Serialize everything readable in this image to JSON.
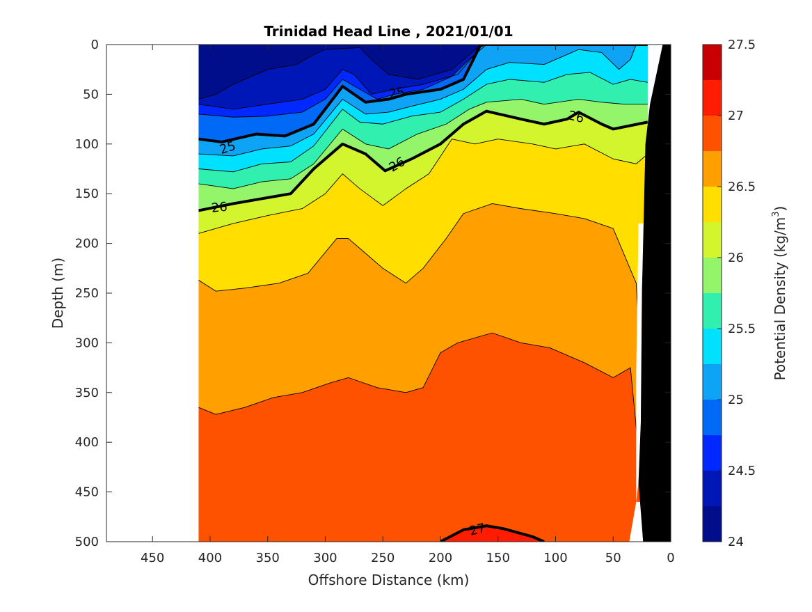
{
  "chart_data": {
    "type": "heatmap",
    "subtype": "filled-contour-section",
    "title": "Trinidad Head Line , 2021/01/01",
    "xlabel": "Offshore Distance (km)",
    "ylabel": "Depth (m)",
    "xlim": [
      490,
      0
    ],
    "ylim": [
      500,
      0
    ],
    "x_direction": "reversed",
    "y_direction": "depth-down",
    "x_ticks": [
      450,
      400,
      350,
      300,
      250,
      200,
      150,
      100,
      50,
      0
    ],
    "y_ticks": [
      0,
      50,
      100,
      150,
      200,
      250,
      300,
      350,
      400,
      450,
      500
    ],
    "colorbar": {
      "label": "Potential Density (kg/m",
      "label_superscript": "3",
      "label_suffix": ")",
      "range": [
        24,
        27.5
      ],
      "tick_labels": [
        "24",
        "24.5",
        "25",
        "25.5",
        "26",
        "26.5",
        "27",
        "27.5"
      ],
      "ticks": [
        24,
        24.5,
        25,
        25.5,
        26,
        26.5,
        27,
        27.5
      ],
      "levels": [
        24,
        24.25,
        24.5,
        24.75,
        25,
        25.25,
        25.5,
        25.75,
        26,
        26.25,
        26.5,
        26.75,
        27,
        27.25,
        27.5
      ],
      "colors": [
        "#000e8b",
        "#0017b8",
        "#0028ff",
        "#006af6",
        "#0ea3f4",
        "#00e0ff",
        "#30efaf",
        "#95f56a",
        "#d2f52d",
        "#ffde00",
        "#ff9f00",
        "#ff5200",
        "#ff1c00",
        "#c80000"
      ]
    },
    "data_extent_km": [
      410,
      20
    ],
    "bold_contours": [
      25,
      26,
      27
    ],
    "contour_labels": [
      "25",
      "25",
      "26",
      "26",
      "26",
      "27"
    ],
    "bands": [
      {
        "value": 24.125,
        "depth_top": [
          [
            410,
            0
          ],
          [
            320,
            0
          ],
          [
            290,
            0
          ],
          [
            200,
            0
          ],
          [
            170,
            0
          ],
          [
            20,
            0
          ]
        ]
      },
      {
        "value": 24.375,
        "depth_top": [
          [
            410,
            55
          ],
          [
            395,
            50
          ],
          [
            380,
            40
          ],
          [
            350,
            25
          ],
          [
            325,
            20
          ],
          [
            310,
            10
          ],
          [
            300,
            5
          ],
          [
            270,
            3
          ],
          [
            260,
            15
          ],
          [
            245,
            30
          ],
          [
            220,
            35
          ],
          [
            190,
            25
          ],
          [
            170,
            5
          ],
          [
            160,
            0
          ],
          [
            20,
            0
          ]
        ]
      },
      {
        "value": 24.625,
        "depth_top": [
          [
            410,
            60
          ],
          [
            380,
            65
          ],
          [
            350,
            60
          ],
          [
            320,
            55
          ],
          [
            300,
            45
          ],
          [
            285,
            25
          ],
          [
            275,
            30
          ],
          [
            260,
            50
          ],
          [
            240,
            45
          ],
          [
            215,
            40
          ],
          [
            185,
            30
          ],
          [
            170,
            10
          ],
          [
            165,
            0
          ],
          [
            20,
            0
          ]
        ]
      },
      {
        "value": 24.875,
        "depth_top": [
          [
            410,
            70
          ],
          [
            380,
            73
          ],
          [
            350,
            72
          ],
          [
            320,
            68
          ],
          [
            300,
            55
          ],
          [
            285,
            35
          ],
          [
            270,
            45
          ],
          [
            255,
            55
          ],
          [
            240,
            50
          ],
          [
            215,
            45
          ],
          [
            190,
            32
          ],
          [
            175,
            15
          ],
          [
            160,
            0
          ],
          [
            20,
            0
          ]
        ]
      },
      {
        "value": 25.125,
        "depth_top": [
          [
            410,
            95
          ],
          [
            390,
            98
          ],
          [
            360,
            90
          ],
          [
            335,
            92
          ],
          [
            310,
            80
          ],
          [
            285,
            42
          ],
          [
            265,
            58
          ],
          [
            245,
            55
          ],
          [
            230,
            50
          ],
          [
            200,
            45
          ],
          [
            180,
            35
          ],
          [
            165,
            0
          ],
          [
            20,
            0
          ]
        ]
      },
      {
        "value": 25.375,
        "depth_top": [
          [
            410,
            110
          ],
          [
            380,
            112
          ],
          [
            355,
            105
          ],
          [
            330,
            102
          ],
          [
            310,
            90
          ],
          [
            285,
            55
          ],
          [
            265,
            70
          ],
          [
            245,
            68
          ],
          [
            225,
            62
          ],
          [
            200,
            55
          ],
          [
            180,
            45
          ],
          [
            160,
            25
          ],
          [
            140,
            18
          ],
          [
            110,
            20
          ],
          [
            90,
            10
          ],
          [
            80,
            5
          ],
          [
            60,
            8
          ],
          [
            45,
            25
          ],
          [
            35,
            15
          ],
          [
            30,
            0
          ],
          [
            20,
            0
          ]
        ]
      },
      {
        "value": 25.625,
        "depth_top": [
          [
            410,
            125
          ],
          [
            380,
            128
          ],
          [
            355,
            120
          ],
          [
            330,
            118
          ],
          [
            310,
            102
          ],
          [
            285,
            65
          ],
          [
            270,
            78
          ],
          [
            250,
            80
          ],
          [
            225,
            72
          ],
          [
            200,
            68
          ],
          [
            180,
            55
          ],
          [
            160,
            40
          ],
          [
            140,
            35
          ],
          [
            110,
            38
          ],
          [
            90,
            30
          ],
          [
            70,
            28
          ],
          [
            50,
            40
          ],
          [
            35,
            35
          ],
          [
            20,
            38
          ]
        ]
      },
      {
        "value": 25.875,
        "depth_top": [
          [
            410,
            140
          ],
          [
            380,
            145
          ],
          [
            355,
            138
          ],
          [
            330,
            135
          ],
          [
            310,
            120
          ],
          [
            285,
            85
          ],
          [
            265,
            100
          ],
          [
            245,
            105
          ],
          [
            220,
            90
          ],
          [
            195,
            80
          ],
          [
            175,
            65
          ],
          [
            160,
            58
          ],
          [
            130,
            55
          ],
          [
            110,
            60
          ],
          [
            80,
            55
          ],
          [
            60,
            58
          ],
          [
            40,
            60
          ],
          [
            20,
            60
          ]
        ]
      },
      {
        "value": 26.125,
        "depth_top": [
          [
            410,
            167
          ],
          [
            380,
            160
          ],
          [
            355,
            155
          ],
          [
            330,
            150
          ],
          [
            310,
            125
          ],
          [
            285,
            100
          ],
          [
            265,
            110
          ],
          [
            248,
            127
          ],
          [
            225,
            115
          ],
          [
            200,
            100
          ],
          [
            180,
            80
          ],
          [
            160,
            67
          ],
          [
            130,
            75
          ],
          [
            110,
            80
          ],
          [
            90,
            75
          ],
          [
            80,
            68
          ],
          [
            60,
            80
          ],
          [
            50,
            85
          ],
          [
            20,
            78
          ]
        ]
      },
      {
        "value": 26.375,
        "depth_top": [
          [
            410,
            190
          ],
          [
            380,
            180
          ],
          [
            350,
            172
          ],
          [
            320,
            165
          ],
          [
            300,
            150
          ],
          [
            285,
            130
          ],
          [
            270,
            145
          ],
          [
            250,
            162
          ],
          [
            230,
            145
          ],
          [
            210,
            130
          ],
          [
            190,
            95
          ],
          [
            170,
            100
          ],
          [
            150,
            95
          ],
          [
            120,
            100
          ],
          [
            100,
            105
          ],
          [
            75,
            100
          ],
          [
            50,
            115
          ],
          [
            30,
            120
          ],
          [
            20,
            110
          ]
        ]
      },
      {
        "value": 26.625,
        "depth_top": [
          [
            410,
            237
          ],
          [
            395,
            248
          ],
          [
            370,
            245
          ],
          [
            340,
            240
          ],
          [
            315,
            230
          ],
          [
            290,
            195
          ],
          [
            280,
            195
          ],
          [
            265,
            210
          ],
          [
            250,
            225
          ],
          [
            230,
            240
          ],
          [
            215,
            225
          ],
          [
            195,
            195
          ],
          [
            180,
            170
          ],
          [
            155,
            160
          ],
          [
            130,
            165
          ],
          [
            100,
            170
          ],
          [
            75,
            175
          ],
          [
            50,
            185
          ],
          [
            30,
            240
          ],
          [
            28,
            280
          ],
          [
            20,
            180
          ]
        ]
      },
      {
        "value": 26.875,
        "depth_top": [
          [
            410,
            365
          ],
          [
            395,
            372
          ],
          [
            370,
            365
          ],
          [
            345,
            355
          ],
          [
            320,
            350
          ],
          [
            295,
            340
          ],
          [
            280,
            335
          ],
          [
            255,
            345
          ],
          [
            230,
            350
          ],
          [
            215,
            345
          ],
          [
            200,
            310
          ],
          [
            185,
            300
          ],
          [
            155,
            290
          ],
          [
            130,
            300
          ],
          [
            105,
            305
          ],
          [
            75,
            320
          ],
          [
            50,
            335
          ],
          [
            35,
            325
          ],
          [
            30,
            385
          ],
          [
            28,
            420
          ],
          [
            20,
            420
          ]
        ]
      },
      {
        "value": 27.125,
        "depth_top": [
          [
            200,
            500
          ],
          [
            180,
            488
          ],
          [
            160,
            484
          ],
          [
            145,
            487
          ],
          [
            120,
            495
          ],
          [
            110,
            500
          ]
        ]
      }
    ],
    "bathymetry": {
      "label": "seafloor",
      "outline": [
        [
          24,
          500
        ],
        [
          28,
          440
        ],
        [
          26,
          380
        ],
        [
          25,
          250
        ],
        [
          22,
          100
        ],
        [
          18,
          60
        ],
        [
          7,
          0
        ],
        [
          0,
          0
        ],
        [
          0,
          500
        ]
      ]
    },
    "missing_regions": [
      {
        "outline": [
          [
            490,
            0
          ],
          [
            410,
            0
          ],
          [
            410,
            500
          ],
          [
            490,
            500
          ]
        ]
      },
      {
        "outline": [
          [
            30,
            460
          ],
          [
            26,
            460
          ],
          [
            24,
            500
          ],
          [
            36,
            500
          ]
        ]
      }
    ]
  }
}
